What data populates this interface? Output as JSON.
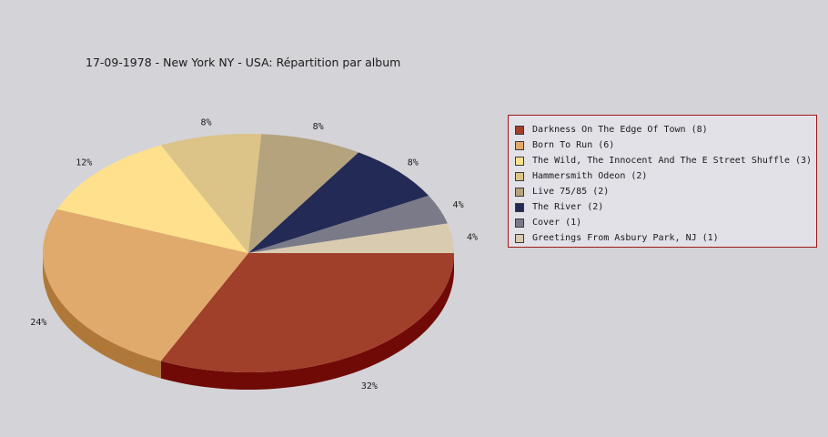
{
  "chart_data": {
    "type": "pie",
    "title": "17-09-1978 - New York NY - USA:  Répartition par album",
    "slices": [
      {
        "label": "Darkness On The Edge Of Town (8)",
        "value": 8,
        "pct_label": "32%",
        "color": "#a0402a",
        "side_color": "#700a06"
      },
      {
        "label": "Born To Run (6)",
        "value": 6,
        "pct_label": "24%",
        "color": "#e0aa6c",
        "side_color": "#b07838"
      },
      {
        "label": "The Wild, The Innocent And The E Street Shuffle (3)",
        "value": 3,
        "pct_label": "12%",
        "color": "#ffe08c",
        "side_color": "#c8a850"
      },
      {
        "label": "Hammersmith Odeon  (2)",
        "value": 2,
        "pct_label": "8%",
        "color": "#dcc488",
        "side_color": "#a89058"
      },
      {
        "label": "Live 75/85 (2)",
        "value": 2,
        "pct_label": "8%",
        "color": "#b5a37e",
        "side_color": "#85734e"
      },
      {
        "label": "The River (2)",
        "value": 2,
        "pct_label": "8%",
        "color": "#222a55",
        "side_color": "#10153a"
      },
      {
        "label": "Cover (1)",
        "value": 1,
        "pct_label": "4%",
        "color": "#7a7a88",
        "side_color": "#505060"
      },
      {
        "label": "Greetings From Asbury Park, NJ (1)",
        "value": 1,
        "pct_label": "4%",
        "color": "#d9cbb0",
        "side_color": "#a89a80"
      }
    ],
    "legend_position": "right"
  }
}
